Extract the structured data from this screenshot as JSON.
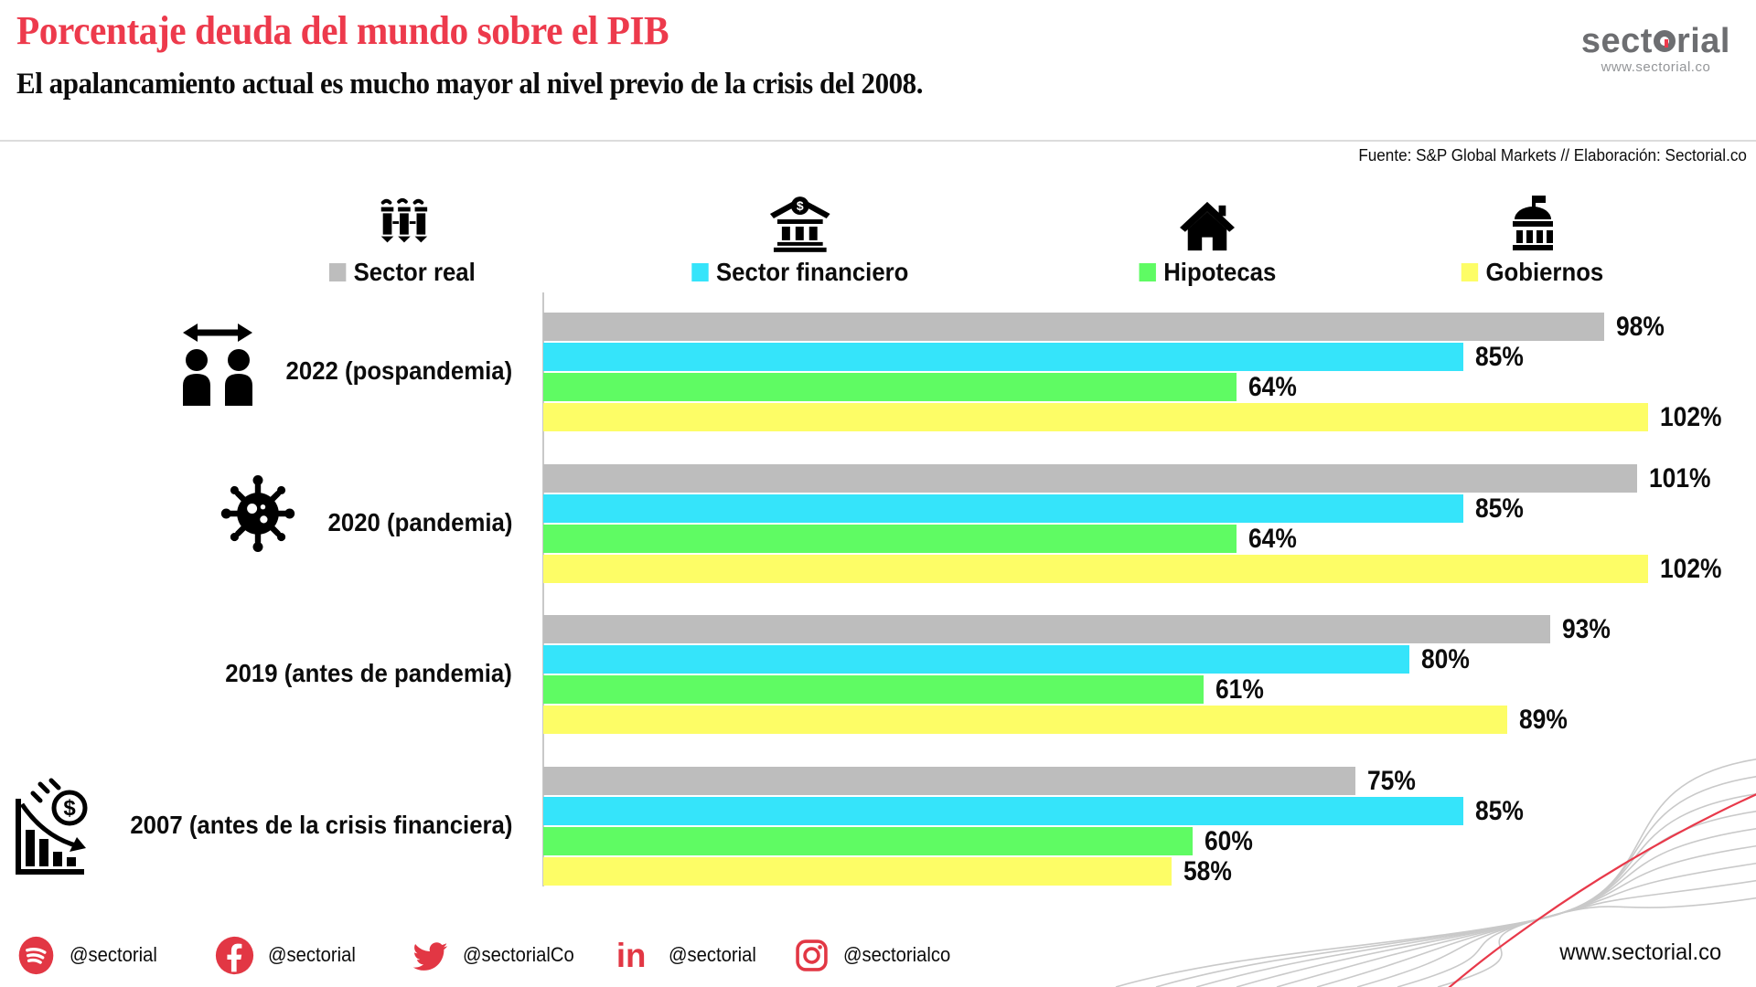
{
  "header": {
    "title": "Porcentaje deuda del mundo sobre el PIB",
    "subtitle": "El apalancamiento actual es mucho mayor al nivel previo de la crisis del 2008.",
    "source": "Fuente: S&P Global Markets // Elaboración: Sectorial.co"
  },
  "logo": {
    "brand_part1": "sect",
    "brand_part2": "rial",
    "url": "www.sectorial.co"
  },
  "legend": {
    "items": [
      {
        "label": "Sector real",
        "color": "#bdbdbd",
        "icon": "industry-icon"
      },
      {
        "label": "Sector financiero",
        "color": "#35e4fa",
        "icon": "bank-icon"
      },
      {
        "label": "Hipotecas",
        "color": "#5ffb63",
        "icon": "house-icon"
      },
      {
        "label": "Gobiernos",
        "color": "#fdfd66",
        "icon": "government-icon"
      }
    ]
  },
  "chart_data": {
    "type": "bar",
    "orientation": "horizontal",
    "value_unit": "%",
    "xlim": [
      0,
      105
    ],
    "grid": false,
    "series": [
      "Sector real",
      "Sector financiero",
      "Hipotecas",
      "Gobiernos"
    ],
    "series_colors": [
      "#bdbdbd",
      "#35e4fa",
      "#5ffb63",
      "#fdfd66"
    ],
    "groups": [
      {
        "label": "2022 (pospandemia)",
        "icon": "social-distance-icon",
        "values": [
          98,
          85,
          64,
          102
        ]
      },
      {
        "label": "2020 (pandemia)",
        "icon": "virus-icon",
        "values": [
          101,
          85,
          64,
          102
        ]
      },
      {
        "label": "2019 (antes de pandemia)",
        "icon": null,
        "values": [
          93,
          80,
          61,
          89
        ]
      },
      {
        "label": "2007 (antes de la crisis financiera)",
        "icon": "financial-crisis-icon",
        "values": [
          75,
          85,
          60,
          58
        ]
      }
    ]
  },
  "footer": {
    "socials": [
      {
        "platform": "spotify",
        "icon": "spotify-icon",
        "handle": "@sectorial"
      },
      {
        "platform": "facebook",
        "icon": "facebook-icon",
        "handle": "@sectorial"
      },
      {
        "platform": "twitter",
        "icon": "twitter-icon",
        "handle": "@sectorialCo"
      },
      {
        "platform": "linkedin",
        "icon": "linkedin-icon",
        "handle": "@sectorial"
      },
      {
        "platform": "instagram",
        "icon": "instagram-icon",
        "handle": "@sectorialco"
      }
    ],
    "website": "www.sectorial.co"
  },
  "colors": {
    "accent_red": "#ed3a4c",
    "logo_gray": "#6d6e71",
    "divider_gray": "#dcdcdc",
    "swirl_gray": "#c9c9c9"
  }
}
